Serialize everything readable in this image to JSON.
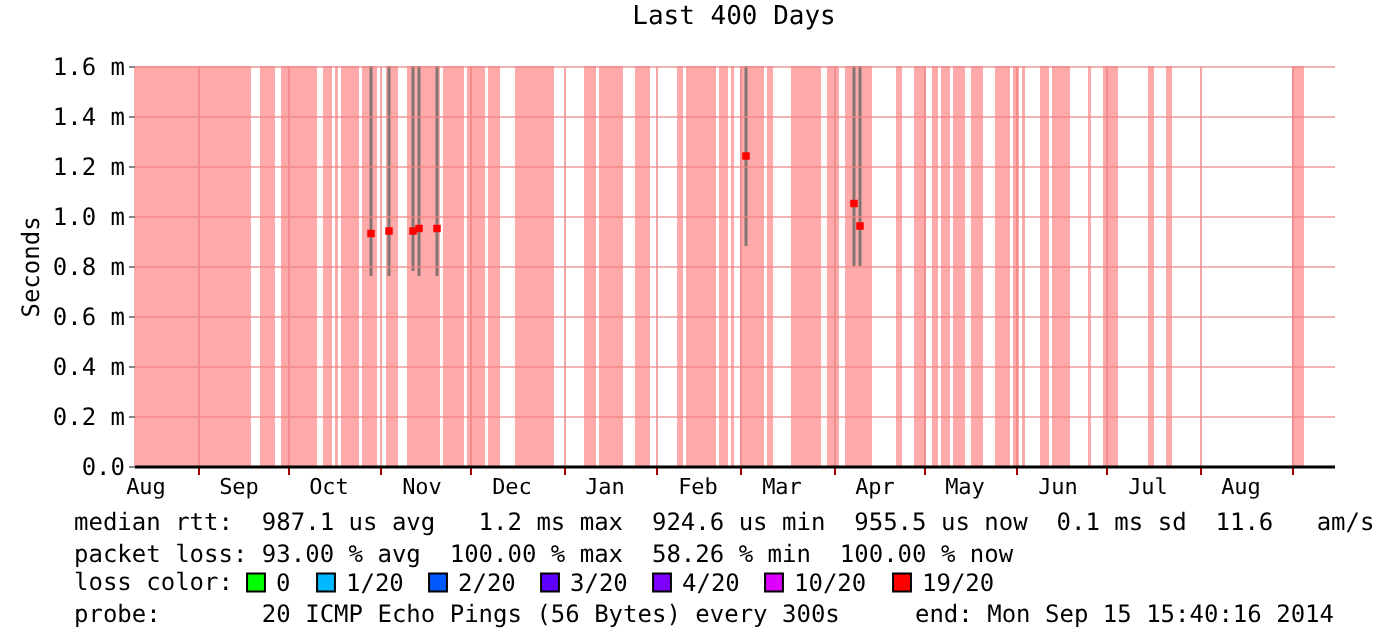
{
  "chart_data": {
    "type": "scatter",
    "title": "Last 400 Days",
    "ylabel": "Seconds",
    "legend_title": "loss color:",
    "legend": "bottom",
    "marker": "square",
    "grid": true,
    "xlim": [
      "2013-08-11",
      "2014-09-15"
    ],
    "xticks": [
      {
        "value": "2013-08-15",
        "label": "Aug"
      },
      {
        "value": "2013-09-01",
        "label": null
      },
      {
        "value": "2013-09-15",
        "label": "Sep"
      },
      {
        "value": "2013-10-01",
        "label": null
      },
      {
        "value": "2013-10-15",
        "label": "Oct"
      },
      {
        "value": "2013-11-01",
        "label": null
      },
      {
        "value": "2013-11-15",
        "label": "Nov"
      },
      {
        "value": "2013-12-01",
        "label": null
      },
      {
        "value": "2013-12-15",
        "label": "Dec"
      },
      {
        "value": "2014-01-01",
        "label": null
      },
      {
        "value": "2014-01-15",
        "label": "Jan"
      },
      {
        "value": "2014-02-01",
        "label": null
      },
      {
        "value": "2014-02-15",
        "label": "Feb"
      },
      {
        "value": "2014-03-01",
        "label": null
      },
      {
        "value": "2014-03-15",
        "label": "Mar"
      },
      {
        "value": "2014-04-01",
        "label": null
      },
      {
        "value": "2014-04-15",
        "label": "Apr"
      },
      {
        "value": "2014-05-01",
        "label": null
      },
      {
        "value": "2014-05-15",
        "label": "May"
      },
      {
        "value": "2014-06-01",
        "label": null
      },
      {
        "value": "2014-06-15",
        "label": "Jun"
      },
      {
        "value": "2014-07-01",
        "label": null
      },
      {
        "value": "2014-07-15",
        "label": "Jul"
      },
      {
        "value": "2014-08-01",
        "label": null
      },
      {
        "value": "2014-08-15",
        "label": "Aug"
      },
      {
        "value": "2014-09-01",
        "label": null
      }
    ],
    "ylim": [
      0,
      1.6
    ],
    "yticks": [
      {
        "value": 0,
        "label": "0.0"
      },
      {
        "value": 0.2,
        "label": "0.2 m"
      },
      {
        "value": 0.4,
        "label": "0.4 m"
      },
      {
        "value": 0.6,
        "label": "0.6 m"
      },
      {
        "value": 0.8,
        "label": "0.8 m"
      },
      {
        "value": 1.0,
        "label": "1.0 m"
      },
      {
        "value": 1.2,
        "label": "1.2 m"
      },
      {
        "value": 1.4,
        "label": "1.4 m"
      },
      {
        "value": 1.6,
        "label": "1.6 m"
      }
    ],
    "x": [
      "2013-10-29",
      "2013-11-04",
      "2013-11-12",
      "2013-11-14",
      "2013-11-20",
      "2014-03-03",
      "2014-04-08",
      "2014-04-10"
    ],
    "series": [
      {
        "name": "0",
        "color": "#00ff00",
        "values": [
          null,
          null,
          null,
          null,
          null,
          null,
          null,
          null
        ]
      },
      {
        "name": "1/20",
        "color": "#00b8ff",
        "values": [
          null,
          null,
          null,
          null,
          null,
          null,
          null,
          null
        ]
      },
      {
        "name": "2/20",
        "color": "#0059ff",
        "values": [
          null,
          null,
          null,
          null,
          null,
          null,
          null,
          null
        ]
      },
      {
        "name": "3/20",
        "color": "#5e00ff",
        "values": [
          null,
          null,
          null,
          null,
          null,
          null,
          null,
          null
        ]
      },
      {
        "name": "4/20",
        "color": "#7e00ff",
        "values": [
          null,
          null,
          null,
          null,
          null,
          null,
          null,
          null
        ]
      },
      {
        "name": "10/20",
        "color": "#dd00ff",
        "values": [
          null,
          null,
          null,
          null,
          null,
          null,
          null,
          null
        ]
      },
      {
        "name": "19/20",
        "color": "#ff0000",
        "values": [
          0.93,
          0.94,
          0.94,
          0.95,
          0.95,
          1.24,
          1.05,
          0.96
        ],
        "errors": [
          [
            0.76,
            1.6
          ],
          [
            0.76,
            1.6
          ],
          [
            0.78,
            1.6
          ],
          [
            0.76,
            1.6
          ],
          [
            0.76,
            1.6
          ],
          [
            0.88,
            1.6
          ],
          [
            0.8,
            1.6
          ],
          [
            0.8,
            1.6
          ]
        ]
      }
    ],
    "bands": [
      {
        "axis": "x",
        "from": "2013-08-11",
        "to": "2013-09-19",
        "color": "#ffaaaa"
      },
      {
        "axis": "x",
        "from": "2013-09-22",
        "to": "2013-09-27",
        "color": "#ffaaaa"
      },
      {
        "axis": "x",
        "from": "2013-09-29",
        "to": "2013-10-11",
        "color": "#ffaaaa"
      },
      {
        "axis": "x",
        "from": "2013-10-13",
        "to": "2013-10-16",
        "color": "#ffaaaa"
      },
      {
        "axis": "x",
        "from": "2013-10-17",
        "to": "2013-10-18",
        "color": "#ffaaaa"
      },
      {
        "axis": "x",
        "from": "2013-10-19",
        "to": "2013-10-25",
        "color": "#ffaaaa"
      },
      {
        "axis": "x",
        "from": "2013-10-26",
        "to": "2013-10-31",
        "color": "#ffaaaa"
      },
      {
        "axis": "x",
        "from": "2013-11-03",
        "to": "2013-11-07",
        "color": "#ffaaaa"
      },
      {
        "axis": "x",
        "from": "2013-11-10",
        "to": "2013-11-21",
        "color": "#ffaaaa"
      },
      {
        "axis": "x",
        "from": "2013-11-22",
        "to": "2013-11-29",
        "color": "#ffaaaa"
      },
      {
        "axis": "x",
        "from": "2013-11-30",
        "to": "2013-12-06",
        "color": "#ffaaaa"
      },
      {
        "axis": "x",
        "from": "2013-12-07",
        "to": "2013-12-11",
        "color": "#ffaaaa"
      },
      {
        "axis": "x",
        "from": "2013-12-16",
        "to": "2013-12-29",
        "color": "#ffaaaa"
      },
      {
        "axis": "x",
        "from": "2014-01-08",
        "to": "2014-01-12",
        "color": "#ffaaaa"
      },
      {
        "axis": "x",
        "from": "2014-01-13",
        "to": "2014-01-21",
        "color": "#ffaaaa"
      },
      {
        "axis": "x",
        "from": "2014-01-25",
        "to": "2014-01-30",
        "color": "#ffaaaa"
      },
      {
        "axis": "x",
        "from": "2014-02-08",
        "to": "2014-02-10",
        "color": "#ffaaaa"
      },
      {
        "axis": "x",
        "from": "2014-02-11",
        "to": "2014-02-21",
        "color": "#ffaaaa"
      },
      {
        "axis": "x",
        "from": "2014-02-22",
        "to": "2014-02-25",
        "color": "#ffaaaa"
      },
      {
        "axis": "x",
        "from": "2014-02-26",
        "to": "2014-02-27",
        "color": "#ffaaaa"
      },
      {
        "axis": "x",
        "from": "2014-03-01",
        "to": "2014-03-09",
        "color": "#ffaaaa"
      },
      {
        "axis": "x",
        "from": "2014-03-10",
        "to": "2014-03-12",
        "color": "#ffaaaa"
      },
      {
        "axis": "x",
        "from": "2014-03-18",
        "to": "2014-03-28",
        "color": "#ffaaaa"
      },
      {
        "axis": "x",
        "from": "2014-03-30",
        "to": "2014-04-03",
        "color": "#ffaaaa"
      },
      {
        "axis": "x",
        "from": "2014-04-05",
        "to": "2014-04-14",
        "color": "#ffaaaa"
      },
      {
        "axis": "x",
        "from": "2014-04-22",
        "to": "2014-04-24",
        "color": "#ffaaaa"
      },
      {
        "axis": "x",
        "from": "2014-04-28",
        "to": "2014-05-02",
        "color": "#ffaaaa"
      },
      {
        "axis": "x",
        "from": "2014-05-04",
        "to": "2014-05-06",
        "color": "#ffaaaa"
      },
      {
        "axis": "x",
        "from": "2014-05-07",
        "to": "2014-05-10",
        "color": "#ffaaaa"
      },
      {
        "axis": "x",
        "from": "2014-05-11",
        "to": "2014-05-15",
        "color": "#ffaaaa"
      },
      {
        "axis": "x",
        "from": "2014-05-17",
        "to": "2014-05-21",
        "color": "#ffaaaa"
      },
      {
        "axis": "x",
        "from": "2014-05-25",
        "to": "2014-05-30",
        "color": "#ffaaaa"
      },
      {
        "axis": "x",
        "from": "2014-05-31",
        "to": "2014-06-02",
        "color": "#ffaaaa"
      },
      {
        "axis": "x",
        "from": "2014-06-03",
        "to": "2014-06-04",
        "color": "#ffaaaa"
      },
      {
        "axis": "x",
        "from": "2014-06-09",
        "to": "2014-06-12",
        "color": "#ffaaaa"
      },
      {
        "axis": "x",
        "from": "2014-06-13",
        "to": "2014-06-19",
        "color": "#ffaaaa"
      },
      {
        "axis": "x",
        "from": "2014-06-25",
        "to": "2014-06-26",
        "color": "#ffaaaa"
      },
      {
        "axis": "x",
        "from": "2014-06-30",
        "to": "2014-07-05",
        "color": "#ffaaaa"
      },
      {
        "axis": "x",
        "from": "2014-07-15",
        "to": "2014-07-17",
        "color": "#ffaaaa"
      },
      {
        "axis": "x",
        "from": "2014-07-21",
        "to": "2014-07-23",
        "color": "#ffaaaa"
      },
      {
        "axis": "x",
        "from": "2014-09-01",
        "to": "2014-09-05",
        "color": "#ffaaaa"
      }
    ],
    "annotations": [
      "median rtt:  987.1 us avg   1.2 ms max  924.6 us min  955.5 us now  0.1 ms sd  11.6   am/s",
      "packet loss: 93.00 % avg  100.00 % max  58.26 % min  100.00 % now",
      "probe:       20 ICMP Echo Pings (56 Bytes) every 300s",
      "end: Mon Sep 15 15:40:16 2014"
    ]
  }
}
